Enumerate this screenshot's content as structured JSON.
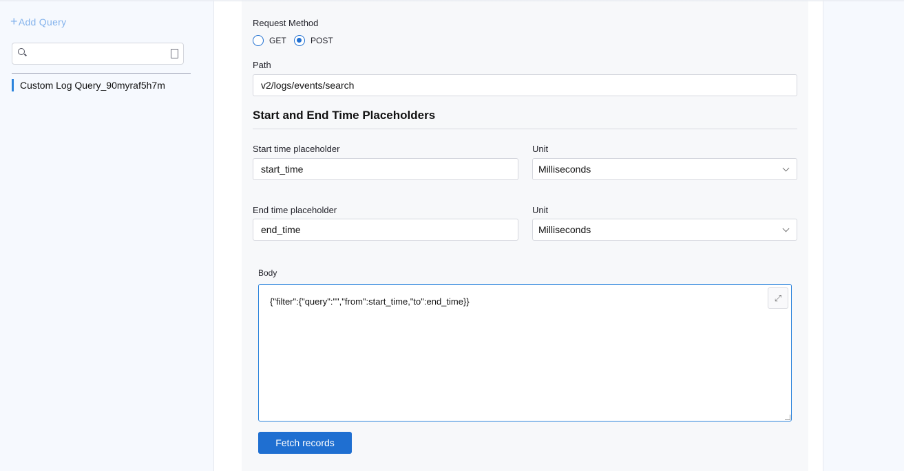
{
  "sidebar": {
    "add_query": "Add Query",
    "search_placeholder": "",
    "queries": [
      "Custom Log Query_90myraf5h7m"
    ]
  },
  "form": {
    "request_method_label": "Request Method",
    "methods": [
      "GET",
      "POST"
    ],
    "selected_method": "POST",
    "path_label": "Path",
    "path_value": "v2/logs/events/search",
    "placeholders_heading": "Start and End Time Placeholders",
    "start_label": "Start time placeholder",
    "start_value": "start_time",
    "end_label": "End time placeholder",
    "end_value": "end_time",
    "unit_label": "Unit",
    "start_unit": "Milliseconds",
    "end_unit": "Milliseconds",
    "body_label": "Body",
    "body_value": "{\"filter\":{\"query\":\"\",\"from\":start_time,\"to\":end_time}}",
    "fetch_label": "Fetch records"
  },
  "colors": {
    "accent": "#1f6fd1",
    "sidebar_bg": "#f6f9fe",
    "card_bg": "#f7f8fa"
  }
}
